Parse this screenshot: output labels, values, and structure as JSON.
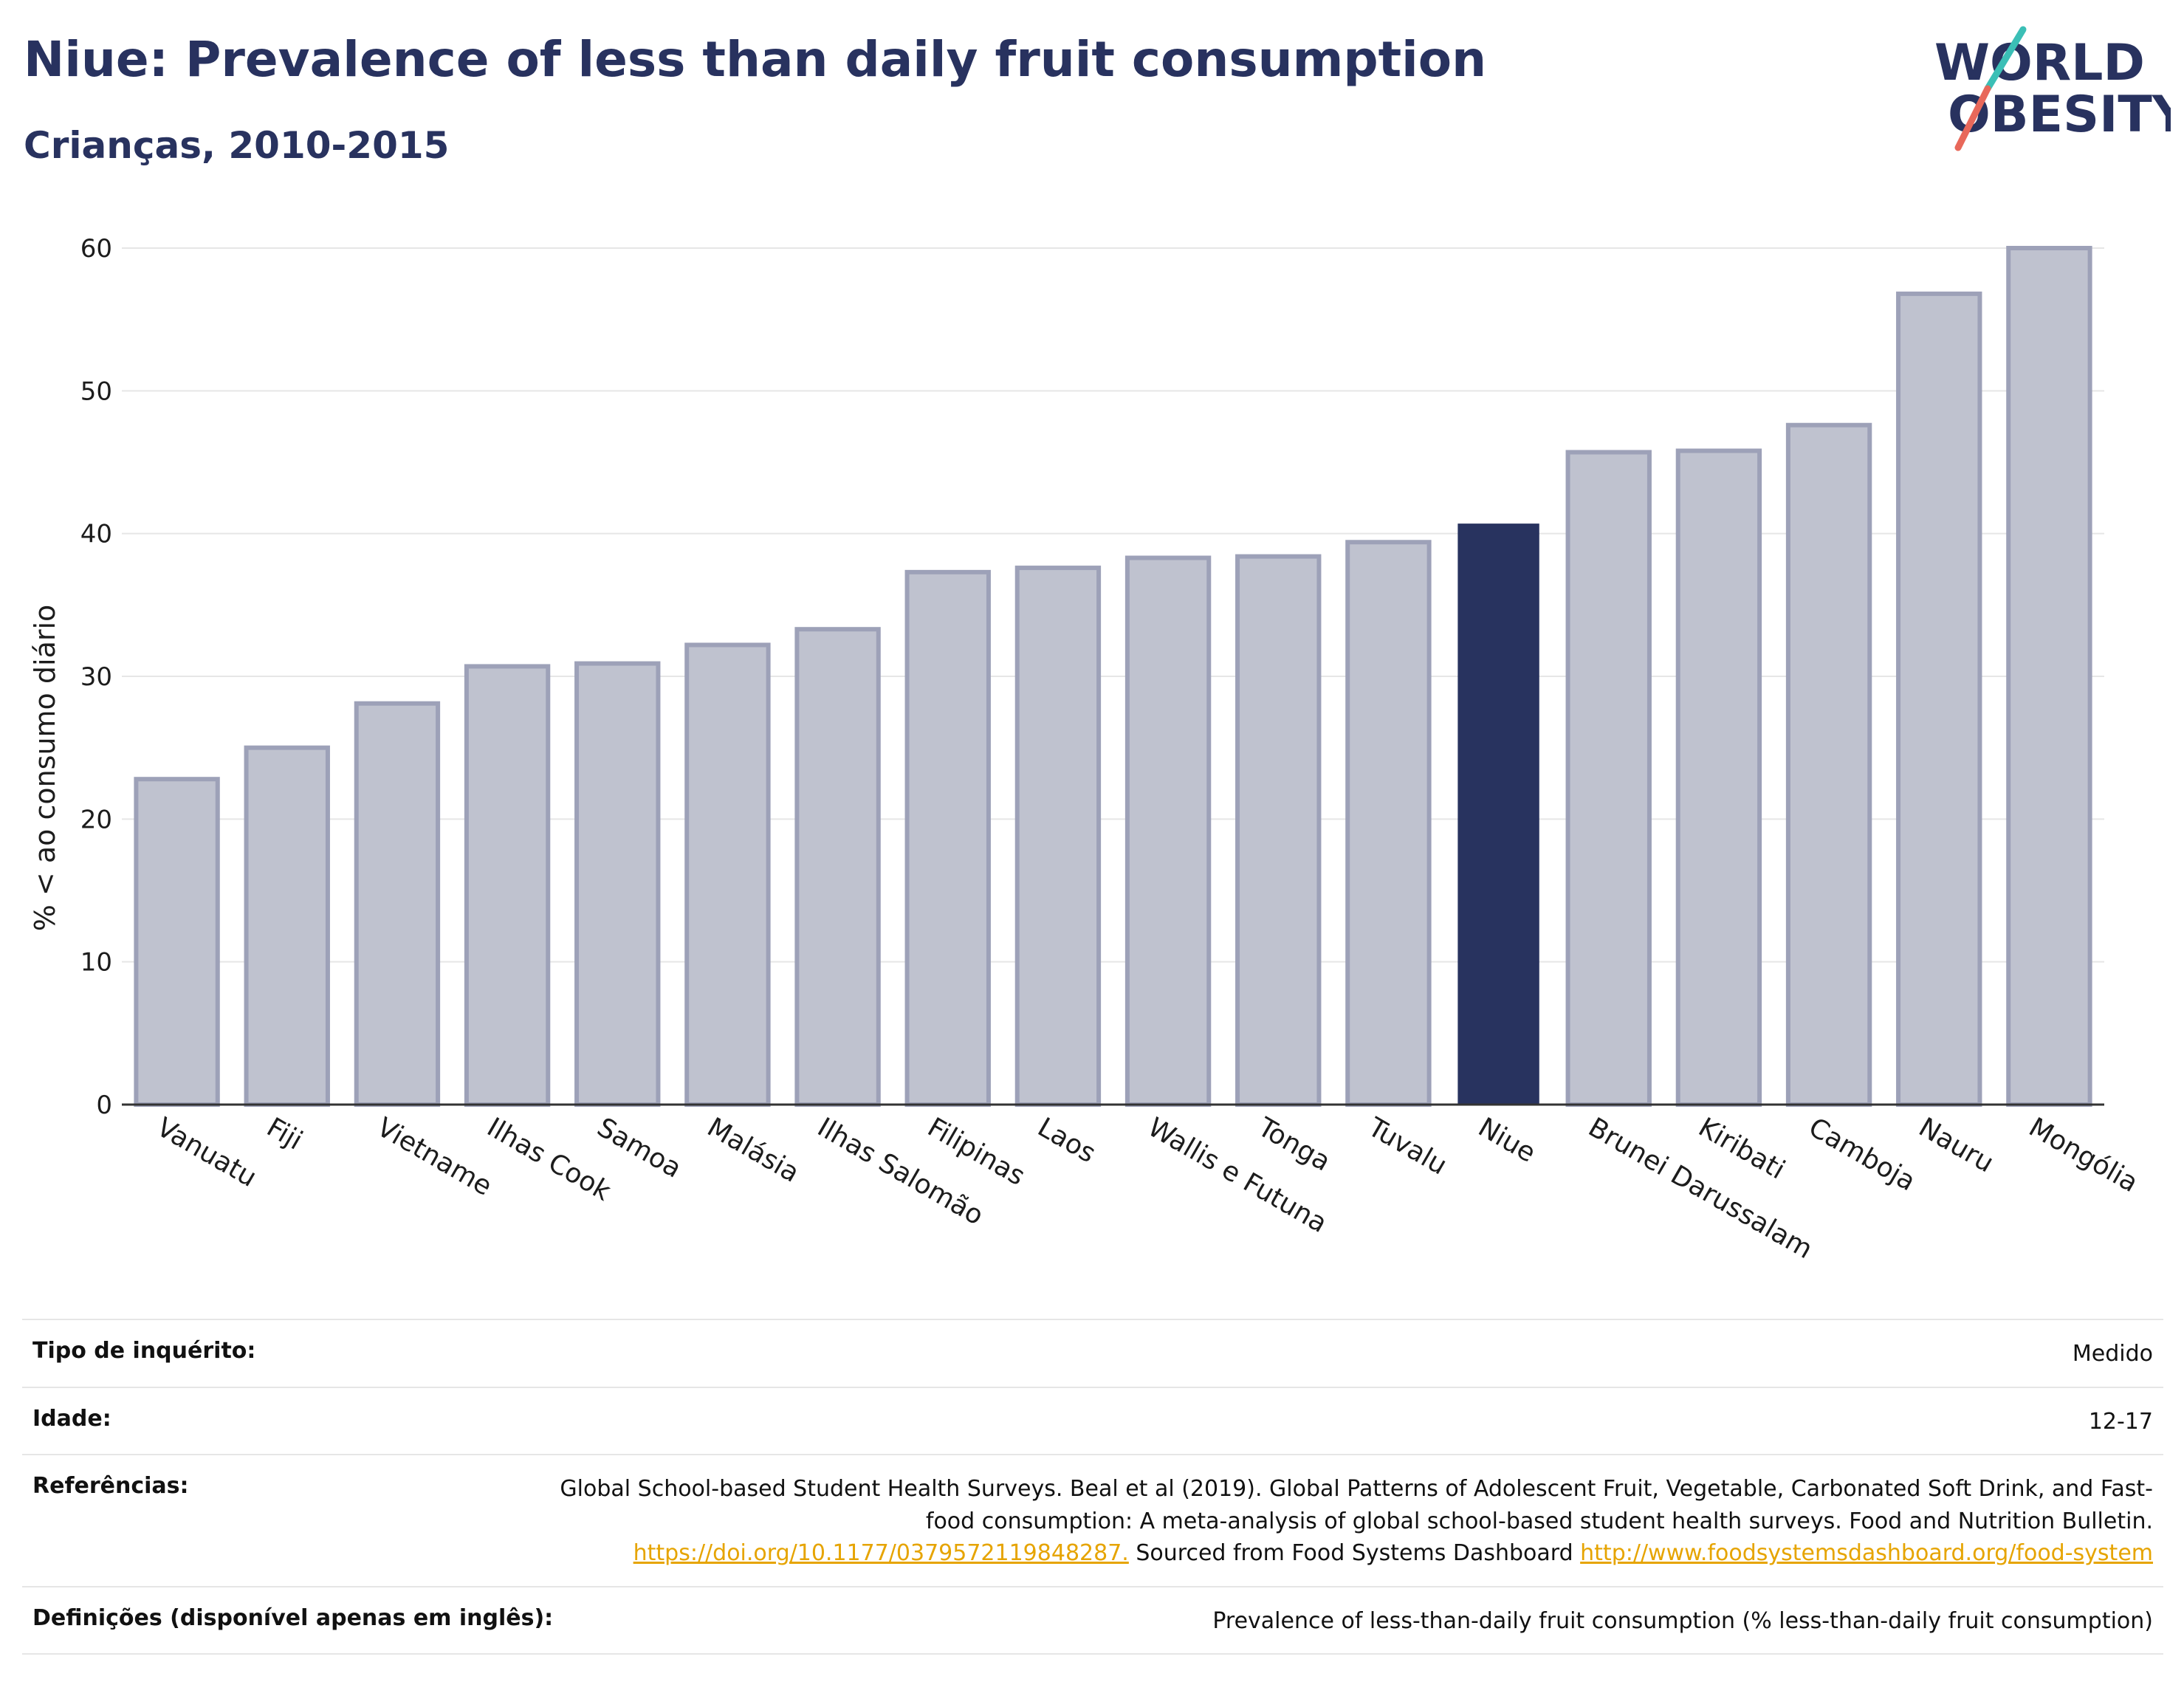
{
  "header": {
    "title": "Niue: Prevalence of less than daily fruit consumption",
    "subtitle": "Crianças, 2010-2015",
    "logo_line1": "WORLD",
    "logo_line2": "OBESITY"
  },
  "colors": {
    "highlight": "#28335f",
    "bar_fill": "#bfc2cf",
    "bar_stroke": "#9da1b8",
    "title": "#28325f",
    "logo_teal": "#3bbfb6",
    "logo_red": "#e8685a",
    "link": "#e6a400"
  },
  "chart_data": {
    "type": "bar",
    "ylabel": "% < ao consumo diário",
    "ylim": [
      0,
      60
    ],
    "yticks": [
      0,
      10,
      20,
      30,
      40,
      50,
      60
    ],
    "grid": true,
    "highlight": "Niue",
    "categories": [
      "Vanuatu",
      "Fiji",
      "Vietname",
      "Ilhas Cook",
      "Samoa",
      "Malásia",
      "Ilhas Salomão",
      "Filipinas",
      "Laos",
      "Wallis e Futuna",
      "Tonga",
      "Tuvalu",
      "Niue",
      "Brunei Darussalam",
      "Kiribati",
      "Camboja",
      "Nauru",
      "Mongólia"
    ],
    "values": [
      22.8,
      25.0,
      28.1,
      30.7,
      30.9,
      32.2,
      33.3,
      37.3,
      37.6,
      38.3,
      38.4,
      39.4,
      40.7,
      45.7,
      45.8,
      47.6,
      56.8,
      60.0
    ]
  },
  "meta": {
    "survey_type_label": "Tipo de inquérito:",
    "survey_type_value": "Medido",
    "age_label": "Idade:",
    "age_value": "12-17",
    "references_label": "Referências:",
    "references_text": "Global School-based Student Health Surveys. Beal et al (2019). Global Patterns of Adolescent Fruit, Vegetable, Carbonated Soft Drink, and Fast-food consumption: A meta-analysis of global school-based student health surveys. Food and Nutrition Bulletin.",
    "references_link1": "https://doi.org/10.1177/0379572119848287.",
    "references_mid": " Sourced from Food Systems Dashboard ",
    "references_link2": "http://www.foodsystemsdashboard.org/food-system",
    "definitions_label": "Definições (disponível apenas em inglês):",
    "definitions_value": "Prevalence of less-than-daily fruit consumption (% less-than-daily fruit consumption)"
  }
}
